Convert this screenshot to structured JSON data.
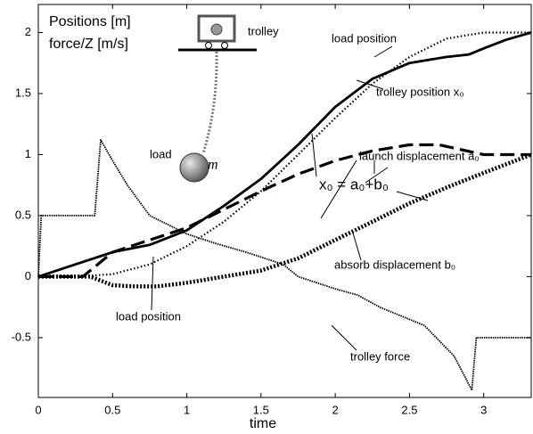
{
  "chart_data": {
    "type": "line",
    "x_label": "time",
    "xlim": [
      0,
      3.32
    ],
    "ylim": [
      -0.99,
      2.23
    ],
    "xticks": [
      0,
      0.5,
      1,
      1.5,
      2,
      2.5,
      3
    ],
    "yticks": [
      -0.5,
      0,
      0.5,
      1,
      1.5,
      2
    ],
    "series": [
      {
        "name": "trolley position x₀",
        "style": "solid",
        "color": "#000000",
        "x": [
          0,
          0.25,
          0.5,
          0.75,
          1,
          1.25,
          1.5,
          1.75,
          2,
          2.25,
          2.5,
          2.75,
          2.9,
          3.0,
          3.15,
          3.32
        ],
        "values": [
          0,
          0.1,
          0.2,
          0.26,
          0.38,
          0.58,
          0.8,
          1.08,
          1.39,
          1.62,
          1.75,
          1.8,
          1.82,
          1.87,
          1.94,
          2.0
        ]
      },
      {
        "name": "load position",
        "style": "dotted",
        "color": "#000000",
        "x": [
          0,
          0.25,
          0.5,
          0.75,
          1,
          1.25,
          1.5,
          1.75,
          2,
          2.25,
          2.5,
          2.75,
          3,
          3.32
        ],
        "values": [
          0,
          0.0,
          0.02,
          0.1,
          0.25,
          0.45,
          0.7,
          1.0,
          1.3,
          1.58,
          1.8,
          1.95,
          2.0,
          2.0
        ]
      },
      {
        "name": "launch displacement a₀",
        "style": "dashed",
        "color": "#000000",
        "x": [
          0,
          0.3,
          0.5,
          0.75,
          1,
          1.25,
          1.5,
          1.75,
          2,
          2.25,
          2.5,
          2.7,
          2.85,
          3,
          3.32
        ],
        "values": [
          0,
          0.0,
          0.2,
          0.3,
          0.4,
          0.55,
          0.7,
          0.84,
          0.95,
          1.03,
          1.08,
          1.08,
          1.04,
          1.0,
          1.0
        ]
      },
      {
        "name": "absorb displacement b₀",
        "style": "thick-dotted",
        "color": "#000000",
        "x": [
          0,
          0.35,
          0.5,
          0.65,
          0.8,
          1,
          1.25,
          1.5,
          1.75,
          2,
          2.25,
          2.5,
          2.75,
          3,
          3.32
        ],
        "values": [
          0,
          0,
          -0.07,
          -0.08,
          -0.08,
          -0.05,
          0.0,
          0.05,
          0.15,
          0.3,
          0.45,
          0.6,
          0.73,
          0.85,
          1.0
        ]
      },
      {
        "name": "trolley force",
        "style": "thin-dotted",
        "color": "#000000",
        "x": [
          0,
          0.02,
          0.38,
          0.42,
          0.5,
          0.6,
          0.75,
          1,
          1.2,
          1.4,
          1.65,
          1.75,
          2.0,
          2.15,
          2.3,
          2.6,
          2.8,
          2.92,
          2.95,
          3.32
        ],
        "values": [
          0,
          0.5,
          0.5,
          1.12,
          0.95,
          0.75,
          0.5,
          0.35,
          0.27,
          0.2,
          0.1,
          0.0,
          -0.1,
          -0.15,
          -0.25,
          -0.4,
          -0.65,
          -0.93,
          -0.5,
          -0.5
        ]
      }
    ],
    "annotations": [
      "Positions [m]",
      "force/Z [m/s]",
      "trolley",
      "load",
      "m",
      "load position",
      "trolley position x₀",
      "launch displacement a₀",
      "x₀ = a₀+b₀",
      "absorb displacement b₀",
      "load position",
      "trolley force"
    ]
  }
}
